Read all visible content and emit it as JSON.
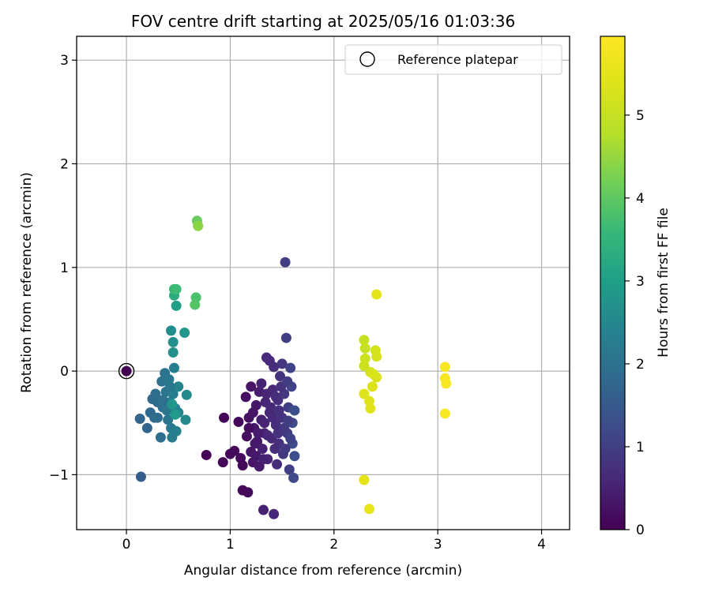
{
  "chart_data": {
    "type": "scatter",
    "title": "FOV centre drift starting at 2025/05/16 01:03:36",
    "xlabel": "Angular distance from reference (arcmin)",
    "ylabel": "Rotation from reference (arcmin)",
    "xlim": [
      -0.48,
      4.27
    ],
    "ylim": [
      -1.53,
      3.23
    ],
    "x_ticks": [
      0,
      1,
      2,
      3,
      4
    ],
    "x_tick_labels": [
      "0",
      "1",
      "2",
      "3",
      "4"
    ],
    "y_ticks": [
      -1,
      0,
      1,
      2,
      3
    ],
    "y_tick_labels": [
      "−1",
      "0",
      "1",
      "2",
      "3"
    ],
    "grid": true,
    "legend": {
      "placement": "top-right",
      "entries": [
        "Reference platepar"
      ]
    },
    "colorbar": {
      "label": "Hours from first FF file",
      "colormap": "viridis",
      "range": [
        0,
        5.95
      ],
      "ticks": [
        0,
        1,
        2,
        3,
        4,
        5
      ],
      "tick_labels": [
        "0",
        "1",
        "2",
        "3",
        "4",
        "5"
      ]
    },
    "reference_point": {
      "x": 0,
      "y": 0
    },
    "series": [
      {
        "points": [
          {
            "x": 0.0,
            "y": 0.0,
            "c": 0.0
          },
          {
            "x": 0.77,
            "y": -0.81,
            "c": 0.05
          },
          {
            "x": 0.94,
            "y": -0.45,
            "c": 0.05
          },
          {
            "x": 0.93,
            "y": -0.88,
            "c": 0.08
          },
          {
            "x": 1.0,
            "y": -0.8,
            "c": 0.1
          },
          {
            "x": 1.04,
            "y": -0.77,
            "c": 0.12
          },
          {
            "x": 1.08,
            "y": -0.49,
            "c": 0.1
          },
          {
            "x": 1.1,
            "y": -0.84,
            "c": 0.15
          },
          {
            "x": 1.12,
            "y": -0.91,
            "c": 0.12
          },
          {
            "x": 1.12,
            "y": -1.15,
            "c": 0.1
          },
          {
            "x": 1.17,
            "y": -1.17,
            "c": 0.12
          },
          {
            "x": 1.15,
            "y": -0.25,
            "c": 0.2
          },
          {
            "x": 1.16,
            "y": -0.63,
            "c": 0.2
          },
          {
            "x": 1.18,
            "y": -0.45,
            "c": 0.25
          },
          {
            "x": 1.2,
            "y": -0.15,
            "c": 0.3
          },
          {
            "x": 1.2,
            "y": -0.78,
            "c": 0.3
          },
          {
            "x": 1.22,
            "y": -0.88,
            "c": 0.3
          },
          {
            "x": 1.23,
            "y": -0.55,
            "c": 0.35
          },
          {
            "x": 1.25,
            "y": -0.33,
            "c": 0.35
          },
          {
            "x": 1.26,
            "y": -0.68,
            "c": 0.4
          },
          {
            "x": 1.28,
            "y": -0.92,
            "c": 0.4
          },
          {
            "x": 1.28,
            "y": -0.2,
            "c": 0.45
          },
          {
            "x": 1.3,
            "y": -0.47,
            "c": 0.45
          },
          {
            "x": 1.31,
            "y": -0.75,
            "c": 0.5
          },
          {
            "x": 1.32,
            "y": -1.34,
            "c": 0.5
          },
          {
            "x": 1.33,
            "y": -0.6,
            "c": 0.5
          },
          {
            "x": 1.34,
            "y": -0.3,
            "c": 0.55
          },
          {
            "x": 1.35,
            "y": 0.13,
            "c": 0.6
          },
          {
            "x": 1.36,
            "y": -0.85,
            "c": 0.55
          },
          {
            "x": 1.38,
            "y": -0.4,
            "c": 0.6
          },
          {
            "x": 1.38,
            "y": 0.1,
            "c": 0.65
          },
          {
            "x": 1.4,
            "y": -0.65,
            "c": 0.6
          },
          {
            "x": 1.41,
            "y": -0.18,
            "c": 0.65
          },
          {
            "x": 1.42,
            "y": -1.38,
            "c": 0.6
          },
          {
            "x": 1.42,
            "y": 0.04,
            "c": 0.7
          },
          {
            "x": 1.44,
            "y": -0.52,
            "c": 0.7
          },
          {
            "x": 1.45,
            "y": -0.9,
            "c": 0.7
          },
          {
            "x": 1.46,
            "y": -0.28,
            "c": 0.75
          },
          {
            "x": 1.47,
            "y": -0.7,
            "c": 0.75
          },
          {
            "x": 1.48,
            "y": -0.05,
            "c": 0.8
          },
          {
            "x": 1.5,
            "y": -0.45,
            "c": 0.8
          },
          {
            "x": 1.5,
            "y": 0.07,
            "c": 0.85
          },
          {
            "x": 1.51,
            "y": -0.8,
            "c": 0.85
          },
          {
            "x": 1.52,
            "y": -0.22,
            "c": 0.9
          },
          {
            "x": 1.53,
            "y": 1.05,
            "c": 1.0
          },
          {
            "x": 1.54,
            "y": 0.32,
            "c": 1.0
          },
          {
            "x": 1.55,
            "y": -0.6,
            "c": 0.95
          },
          {
            "x": 1.56,
            "y": -0.35,
            "c": 1.0
          },
          {
            "x": 1.57,
            "y": -0.95,
            "c": 1.0
          },
          {
            "x": 1.58,
            "y": 0.03,
            "c": 1.1
          },
          {
            "x": 1.59,
            "y": -0.15,
            "c": 1.1
          },
          {
            "x": 1.6,
            "y": -0.5,
            "c": 1.2
          },
          {
            "x": 1.6,
            "y": -0.7,
            "c": 1.25
          },
          {
            "x": 1.61,
            "y": -1.03,
            "c": 1.2
          },
          {
            "x": 1.62,
            "y": -0.82,
            "c": 1.3
          },
          {
            "x": 1.62,
            "y": -0.38,
            "c": 1.3
          },
          {
            "x": 1.18,
            "y": -0.55,
            "c": 0.2
          },
          {
            "x": 1.22,
            "y": -0.4,
            "c": 0.3
          },
          {
            "x": 1.25,
            "y": -0.82,
            "c": 0.35
          },
          {
            "x": 1.3,
            "y": -0.12,
            "c": 0.5
          },
          {
            "x": 1.33,
            "y": -0.5,
            "c": 0.55
          },
          {
            "x": 1.36,
            "y": -0.62,
            "c": 0.6
          },
          {
            "x": 1.39,
            "y": -0.35,
            "c": 0.65
          },
          {
            "x": 1.43,
            "y": -0.75,
            "c": 0.7
          },
          {
            "x": 1.46,
            "y": -0.6,
            "c": 0.75
          },
          {
            "x": 1.49,
            "y": -0.15,
            "c": 0.8
          },
          {
            "x": 1.52,
            "y": -0.55,
            "c": 0.9
          },
          {
            "x": 1.55,
            "y": -0.1,
            "c": 0.95
          },
          {
            "x": 1.58,
            "y": -0.65,
            "c": 1.05
          },
          {
            "x": 1.27,
            "y": -0.6,
            "c": 0.4
          },
          {
            "x": 1.35,
            "y": -0.22,
            "c": 0.55
          },
          {
            "x": 1.41,
            "y": -0.45,
            "c": 0.65
          },
          {
            "x": 1.47,
            "y": -0.38,
            "c": 0.75
          },
          {
            "x": 1.53,
            "y": -0.75,
            "c": 0.9
          },
          {
            "x": 1.24,
            "y": -0.7,
            "c": 0.35
          },
          {
            "x": 1.32,
            "y": -0.85,
            "c": 0.5
          },
          {
            "x": 1.44,
            "y": -0.25,
            "c": 0.7
          },
          {
            "x": 1.56,
            "y": -0.48,
            "c": 1.0
          },
          {
            "x": 0.14,
            "y": -1.02,
            "c": 1.6
          },
          {
            "x": 0.13,
            "y": -0.46,
            "c": 1.7
          },
          {
            "x": 0.2,
            "y": -0.55,
            "c": 1.7
          },
          {
            "x": 0.23,
            "y": -0.4,
            "c": 1.8
          },
          {
            "x": 0.25,
            "y": -0.27,
            "c": 1.8
          },
          {
            "x": 0.27,
            "y": -0.45,
            "c": 1.85
          },
          {
            "x": 0.28,
            "y": -0.22,
            "c": 1.9
          },
          {
            "x": 0.3,
            "y": -0.3,
            "c": 1.9
          },
          {
            "x": 0.33,
            "y": -0.64,
            "c": 1.95
          },
          {
            "x": 0.34,
            "y": -0.1,
            "c": 2.0
          },
          {
            "x": 0.35,
            "y": -0.35,
            "c": 2.0
          },
          {
            "x": 0.37,
            "y": -0.02,
            "c": 2.05
          },
          {
            "x": 0.38,
            "y": -0.2,
            "c": 2.1
          },
          {
            "x": 0.4,
            "y": -0.47,
            "c": 2.1
          },
          {
            "x": 0.41,
            "y": -0.08,
            "c": 2.15
          },
          {
            "x": 0.42,
            "y": -0.3,
            "c": 2.2
          },
          {
            "x": 0.43,
            "y": -0.55,
            "c": 2.2
          },
          {
            "x": 0.44,
            "y": -0.64,
            "c": 2.25
          },
          {
            "x": 0.45,
            "y": -0.22,
            "c": 2.3
          },
          {
            "x": 0.46,
            "y": 0.03,
            "c": 2.3
          },
          {
            "x": 0.47,
            "y": -0.36,
            "c": 2.35
          },
          {
            "x": 0.48,
            "y": -0.58,
            "c": 2.3
          },
          {
            "x": 0.5,
            "y": -0.15,
            "c": 2.4
          },
          {
            "x": 0.5,
            "y": -0.4,
            "c": 2.4
          },
          {
            "x": 0.57,
            "y": -0.47,
            "c": 2.5
          },
          {
            "x": 0.58,
            "y": -0.23,
            "c": 2.5
          },
          {
            "x": 0.35,
            "y": -0.28,
            "c": 2.0
          },
          {
            "x": 0.42,
            "y": -0.15,
            "c": 2.15
          },
          {
            "x": 0.39,
            "y": -0.38,
            "c": 2.1
          },
          {
            "x": 0.3,
            "y": -0.45,
            "c": 1.9
          },
          {
            "x": 0.43,
            "y": 0.39,
            "c": 2.6
          },
          {
            "x": 0.45,
            "y": 0.28,
            "c": 2.7
          },
          {
            "x": 0.45,
            "y": 0.18,
            "c": 2.7
          },
          {
            "x": 0.56,
            "y": 0.37,
            "c": 2.8
          },
          {
            "x": 0.44,
            "y": -0.32,
            "c": 2.8
          },
          {
            "x": 0.47,
            "y": -0.42,
            "c": 2.9
          },
          {
            "x": 0.48,
            "y": 0.63,
            "c": 3.0
          },
          {
            "x": 0.46,
            "y": 0.73,
            "c": 3.3
          },
          {
            "x": 0.46,
            "y": 0.79,
            "c": 3.6
          },
          {
            "x": 0.48,
            "y": 0.79,
            "c": 3.65
          },
          {
            "x": 0.67,
            "y": 0.71,
            "c": 3.8
          },
          {
            "x": 0.66,
            "y": 0.64,
            "c": 3.9
          },
          {
            "x": 0.68,
            "y": 1.45,
            "c": 4.1
          },
          {
            "x": 0.69,
            "y": 1.4,
            "c": 4.4
          },
          {
            "x": 2.29,
            "y": 0.3,
            "c": 5.0
          },
          {
            "x": 2.3,
            "y": 0.22,
            "c": 5.05
          },
          {
            "x": 2.3,
            "y": 0.12,
            "c": 5.1
          },
          {
            "x": 2.29,
            "y": 0.05,
            "c": 5.1
          },
          {
            "x": 2.35,
            "y": -0.01,
            "c": 5.2
          },
          {
            "x": 2.4,
            "y": 0.2,
            "c": 5.2
          },
          {
            "x": 2.41,
            "y": 0.14,
            "c": 5.25
          },
          {
            "x": 2.38,
            "y": -0.03,
            "c": 5.3
          },
          {
            "x": 2.41,
            "y": -0.06,
            "c": 5.3
          },
          {
            "x": 2.37,
            "y": -0.15,
            "c": 5.35
          },
          {
            "x": 2.29,
            "y": -0.22,
            "c": 5.4
          },
          {
            "x": 2.34,
            "y": -0.29,
            "c": 5.4
          },
          {
            "x": 2.35,
            "y": -0.36,
            "c": 5.45
          },
          {
            "x": 2.41,
            "y": 0.74,
            "c": 5.5
          },
          {
            "x": 2.29,
            "y": -1.05,
            "c": 5.5
          },
          {
            "x": 2.34,
            "y": -1.33,
            "c": 5.55
          },
          {
            "x": 3.07,
            "y": 0.04,
            "c": 5.85
          },
          {
            "x": 3.07,
            "y": -0.07,
            "c": 5.85
          },
          {
            "x": 3.08,
            "y": -0.12,
            "c": 5.9
          },
          {
            "x": 3.07,
            "y": -0.41,
            "c": 5.9
          }
        ]
      }
    ]
  }
}
